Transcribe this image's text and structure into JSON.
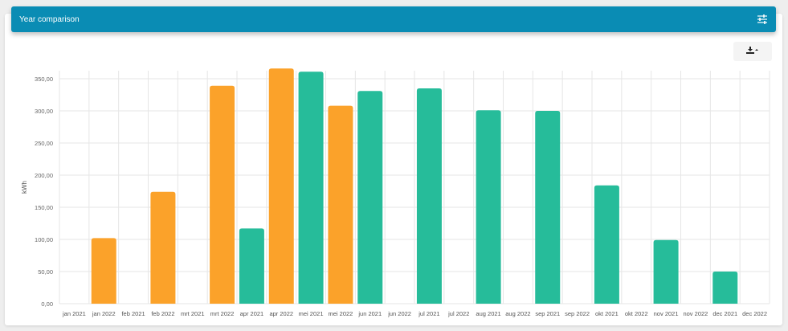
{
  "header": {
    "title": "Year comparison",
    "settings_icon": "tune-sliders-icon"
  },
  "toolbar": {
    "download_icon": "download-dropdown-icon"
  },
  "colors": {
    "header": "#0a8cb4",
    "series_2022": "#fba22a",
    "series_2021": "#26bc9a"
  },
  "chart_data": {
    "type": "bar",
    "ylabel": "kWh",
    "ylim": [
      0,
      375
    ],
    "yticks": [
      "0,00",
      "50,00",
      "100,00",
      "150,00",
      "200,00",
      "250,00",
      "300,00",
      "350,00"
    ],
    "categories": [
      "jan 2021",
      "jan 2022",
      "feb 2021",
      "feb 2022",
      "mrt 2021",
      "mrt 2022",
      "apr 2021",
      "apr 2022",
      "mei 2021",
      "mei 2022",
      "jun 2021",
      "jun 2022",
      "jul 2021",
      "jul 2022",
      "aug 2021",
      "aug 2022",
      "sep 2021",
      "sep 2022",
      "okt 2021",
      "okt 2022",
      "nov 2021",
      "nov 2022",
      "dec 2021",
      "dec 2022"
    ],
    "values": [
      null,
      102,
      null,
      174,
      null,
      339,
      117,
      366,
      361,
      308,
      331,
      null,
      335,
      null,
      301,
      null,
      300,
      null,
      184,
      null,
      99,
      null,
      50,
      null
    ],
    "grid": true,
    "legend": "none"
  }
}
